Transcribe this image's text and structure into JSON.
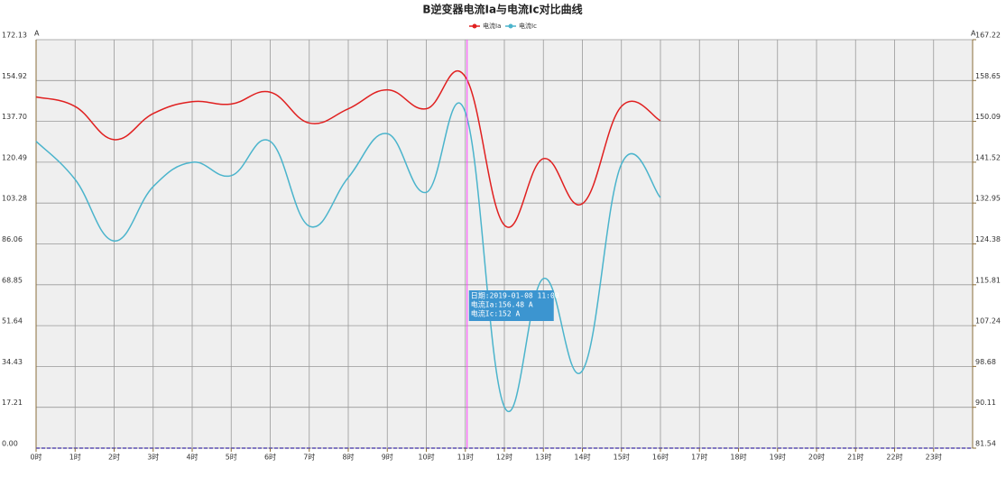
{
  "chart_data": {
    "type": "line",
    "title": "B逆变器电流Ia与电流Ic对比曲线",
    "categories": [
      "0时",
      "1时",
      "2时",
      "3时",
      "4时",
      "5时",
      "6时",
      "7时",
      "8时",
      "9时",
      "10时",
      "11时",
      "12时",
      "13时",
      "14时",
      "15时",
      "16时",
      "17时",
      "18时",
      "19时",
      "20时",
      "21时",
      "22时",
      "23时"
    ],
    "series": [
      {
        "name": "电流Ia",
        "color": "#e02020",
        "values": [
          148,
          144,
          130,
          141,
          146,
          145,
          150,
          137,
          143,
          151,
          143,
          156.48,
          94,
          122,
          103,
          144,
          138,
          null,
          null,
          null,
          null,
          null,
          null,
          null
        ]
      },
      {
        "name": "电流Ic",
        "color": "#4bb4cc",
        "axis": "y2",
        "values": [
          145.9,
          137.9,
          125.0,
          136.4,
          141.5,
          138.7,
          145.9,
          128.1,
          138.3,
          147.5,
          135.2,
          152,
          90.2,
          117.1,
          97.8,
          141.1,
          134.1,
          null,
          null,
          null,
          null,
          null,
          null,
          null
        ]
      }
    ],
    "y_unit": "A",
    "y2_unit": "A",
    "ylim": [
      0,
      172.13
    ],
    "yticks": [
      {
        "value": 0,
        "label": "0.00"
      },
      17.21,
      34.43,
      51.64,
      68.85,
      86.06,
      103.28,
      120.49,
      {
        "value": 137.7,
        "label": "137.70"
      },
      154.92,
      172.13
    ],
    "y2lim": [
      81.54,
      167.22
    ],
    "y2ticks": [
      81.54,
      90.11,
      98.68,
      107.24,
      115.81,
      124.38,
      132.95,
      141.52,
      150.09,
      158.65,
      167.22
    ],
    "grid": true,
    "tooltip": {
      "category": "11时",
      "lines": [
        "日期:2019-01-08 11:00",
        "电流Ia:156.48 A",
        "电流Ic:152 A"
      ]
    }
  }
}
